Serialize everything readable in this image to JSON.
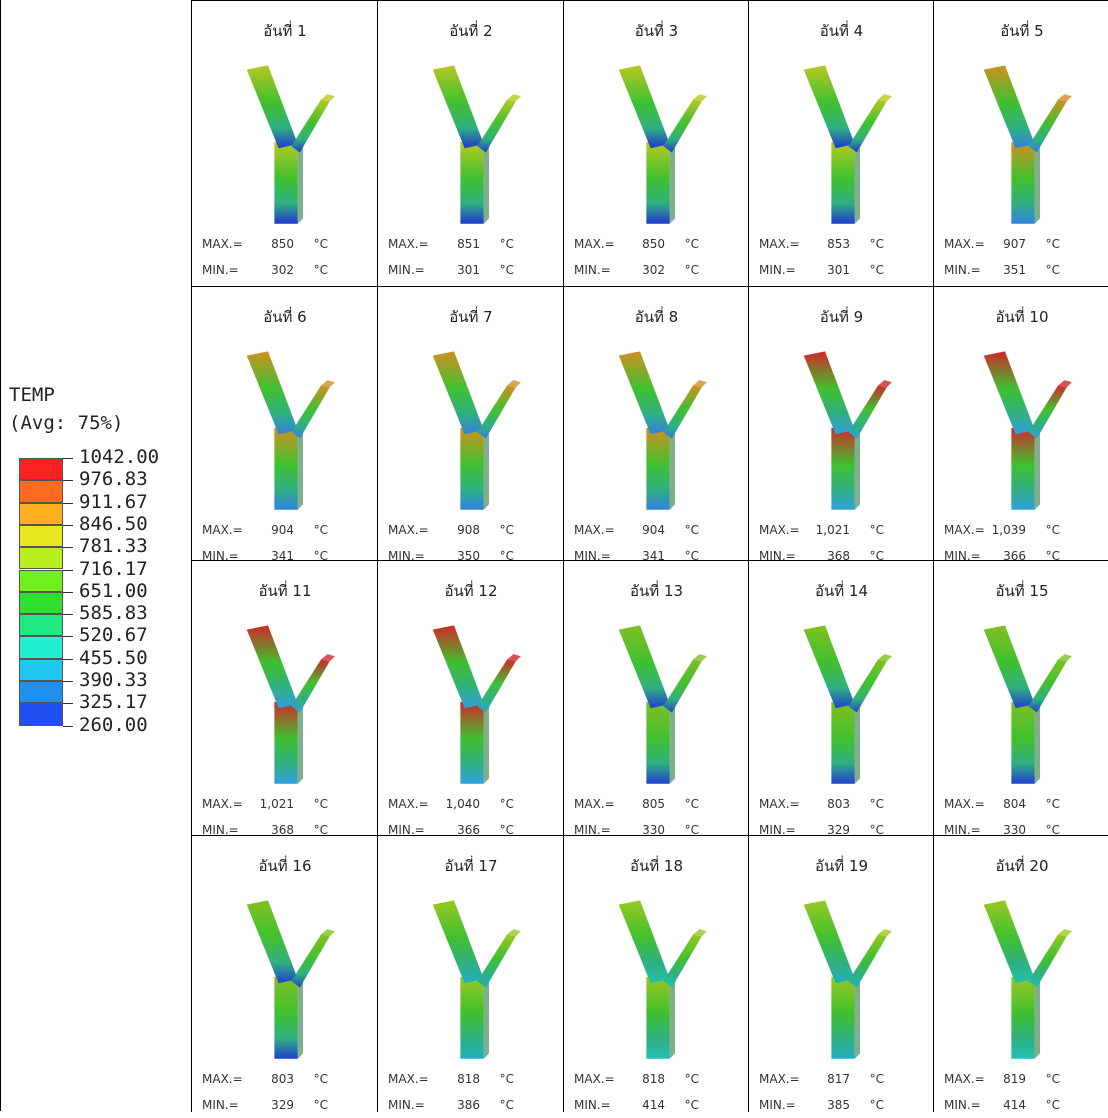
{
  "legend": {
    "title": "TEMP",
    "subtitle": "(Avg: 75%)",
    "levels": [
      "1042.00",
      "976.83",
      "911.67",
      "846.50",
      "781.33",
      "716.17",
      "651.00",
      "585.83",
      "520.67",
      "455.50",
      "390.33",
      "325.17",
      "260.00"
    ],
    "colors": [
      "#ff2020",
      "#ff6a20",
      "#ffb020",
      "#e8e820",
      "#b8f020",
      "#70f020",
      "#30e030",
      "#20e880",
      "#20f0d0",
      "#20c8f0",
      "#2090f0",
      "#2050f0"
    ]
  },
  "max_label": "MAX.=",
  "min_label": "MIN.=",
  "unit": "°C",
  "cells": [
    {
      "title": "อันที่ 1",
      "max": "850",
      "min": "302",
      "top_color": "#b8c820",
      "bottom_color": "#2038d0"
    },
    {
      "title": "อันที่ 2",
      "max": "851",
      "min": "301",
      "top_color": "#b8c820",
      "bottom_color": "#2038d0"
    },
    {
      "title": "อันที่ 3",
      "max": "850",
      "min": "302",
      "top_color": "#b8c820",
      "bottom_color": "#2038d0"
    },
    {
      "title": "อันที่ 4",
      "max": "853",
      "min": "301",
      "top_color": "#b8c820",
      "bottom_color": "#2038d0"
    },
    {
      "title": "อันที่ 5",
      "max": "907",
      "min": "351",
      "top_color": "#d09020",
      "bottom_color": "#3080e0"
    },
    {
      "title": "อันที่ 6",
      "max": "904",
      "min": "341",
      "top_color": "#d09020",
      "bottom_color": "#3080e0"
    },
    {
      "title": "อันที่ 7",
      "max": "908",
      "min": "350",
      "top_color": "#d09020",
      "bottom_color": "#3080e0"
    },
    {
      "title": "อันที่ 8",
      "max": "904",
      "min": "341",
      "top_color": "#d09020",
      "bottom_color": "#3080e0"
    },
    {
      "title": "อันที่ 9",
      "max": "1,021",
      "min": "368",
      "top_color": "#d02828",
      "bottom_color": "#30a0e0"
    },
    {
      "title": "อันที่ 10",
      "max": "1,039",
      "min": "366",
      "top_color": "#d02828",
      "bottom_color": "#30a0e0"
    },
    {
      "title": "อันที่ 11",
      "max": "1,021",
      "min": "368",
      "top_color": "#d02828",
      "bottom_color": "#30a0e0"
    },
    {
      "title": "อันที่ 12",
      "max": "1,040",
      "min": "366",
      "top_color": "#d02828",
      "bottom_color": "#30a0e0"
    },
    {
      "title": "อันที่ 13",
      "max": "805",
      "min": "330",
      "top_color": "#80c020",
      "bottom_color": "#2040d0"
    },
    {
      "title": "อันที่ 14",
      "max": "803",
      "min": "329",
      "top_color": "#80c020",
      "bottom_color": "#2040d0"
    },
    {
      "title": "อันที่ 15",
      "max": "804",
      "min": "330",
      "top_color": "#80c020",
      "bottom_color": "#2040d0"
    },
    {
      "title": "อันที่ 16",
      "max": "803",
      "min": "329",
      "top_color": "#80c020",
      "bottom_color": "#2040d0"
    },
    {
      "title": "อันที่ 17",
      "max": "818",
      "min": "386",
      "top_color": "#98c820",
      "bottom_color": "#20b0c0"
    },
    {
      "title": "อันที่ 18",
      "max": "818",
      "min": "414",
      "top_color": "#98c820",
      "bottom_color": "#20c0b0"
    },
    {
      "title": "อันที่ 19",
      "max": "817",
      "min": "385",
      "top_color": "#98c820",
      "bottom_color": "#20b0c0"
    },
    {
      "title": "อันที่ 20",
      "max": "819",
      "min": "414",
      "top_color": "#98c820",
      "bottom_color": "#20c0b0"
    }
  ]
}
